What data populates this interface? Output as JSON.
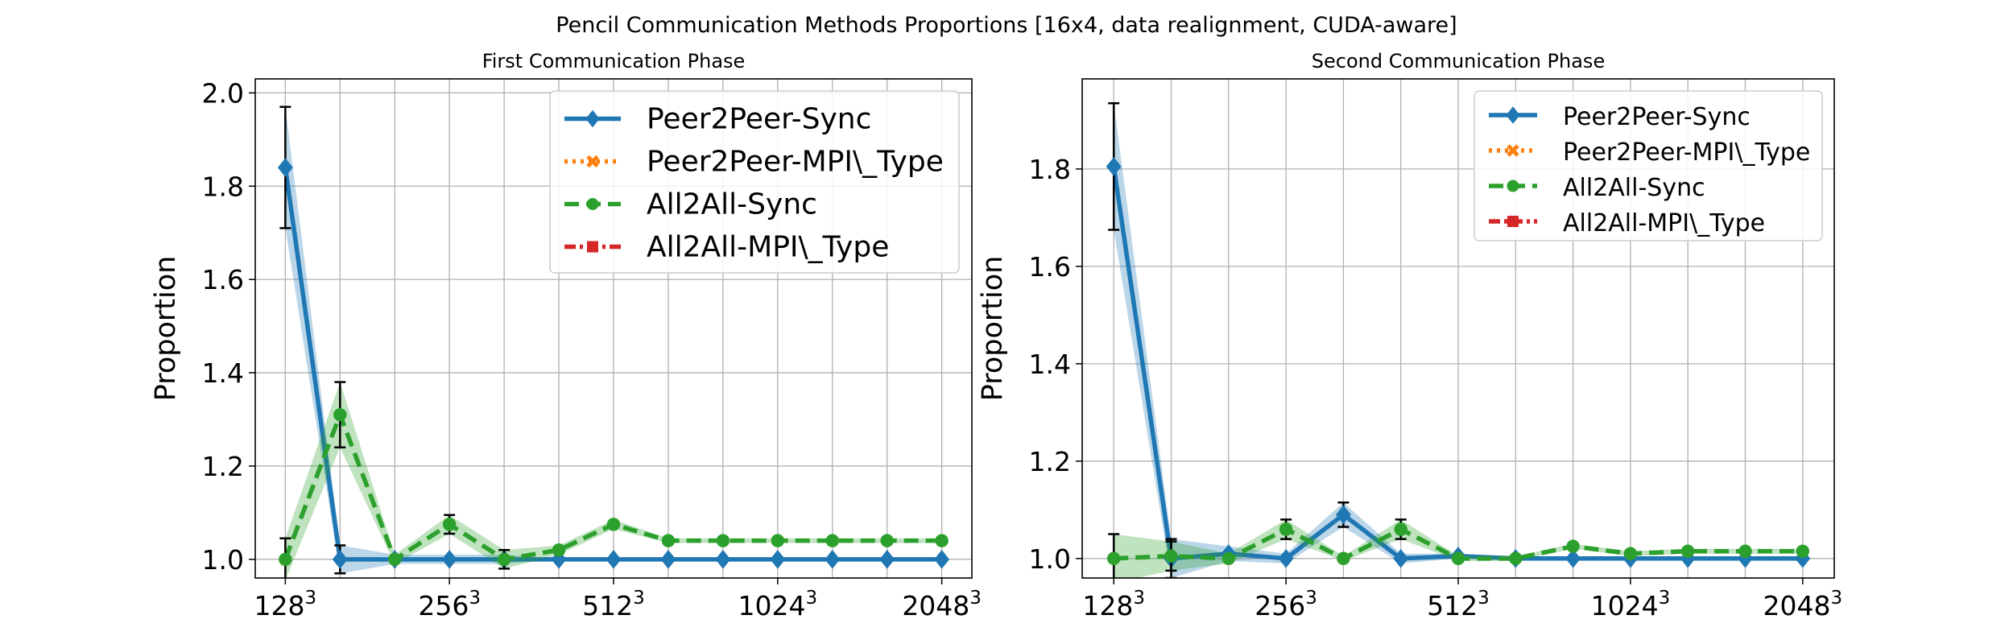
{
  "figure": {
    "title": "Pencil Communication Methods Proportions [16x4, data realignment, CUDA-aware]"
  },
  "chart_data": [
    {
      "type": "line",
      "title": "First Communication Phase",
      "ylabel": "Proportion",
      "xlabel": "",
      "ylim": [
        0.96,
        2.03
      ],
      "yticks": [
        "1.0",
        "1.2",
        "1.4",
        "1.6",
        "1.8",
        "2.0"
      ],
      "xticks": [
        {
          "pos": 0,
          "base": "128",
          "sup": "3"
        },
        {
          "pos": 3,
          "base": "256",
          "sup": "3"
        },
        {
          "pos": 6,
          "base": "512",
          "sup": "3"
        },
        {
          "pos": 9,
          "base": "1024",
          "sup": "3"
        },
        {
          "pos": 12,
          "base": "2048",
          "sup": "3"
        }
      ],
      "grid": true,
      "legend_position": "top-right",
      "series": [
        {
          "name": "Peer2Peer-Sync",
          "color": "#1f77b4",
          "marker": "diamond",
          "values": [
            1.84,
            1.0,
            1.0,
            1.0,
            1.0,
            1.0,
            1.0,
            1.0,
            1.0,
            1.0,
            1.0,
            1.0,
            1.0
          ],
          "err": [
            0.13,
            0.03,
            0.01,
            0.01,
            0.01,
            0.0,
            0.0,
            0.0,
            0.0,
            0.0,
            0.0,
            0.0,
            0.0
          ]
        },
        {
          "name": "Peer2Peer-MPI\\_Type",
          "color": "#ff7f0e",
          "marker": "x",
          "values": []
        },
        {
          "name": "All2All-Sync",
          "color": "#2ca02c",
          "marker": "circle",
          "values": [
            1.0,
            1.31,
            1.0,
            1.075,
            1.0,
            1.02,
            1.075,
            1.04,
            1.04,
            1.04,
            1.04,
            1.04,
            1.04
          ],
          "err": [
            0.045,
            0.07,
            0.01,
            0.02,
            0.02,
            0.01,
            0.01,
            0.005,
            0.005,
            0.005,
            0.005,
            0.005,
            0.005
          ]
        },
        {
          "name": "All2All-MPI\\_Type",
          "color": "#d62728",
          "marker": "square",
          "values": []
        }
      ]
    },
    {
      "type": "line",
      "title": "Second Communication Phase",
      "ylabel": "Proportion",
      "xlabel": "",
      "ylim": [
        0.96,
        1.985
      ],
      "yticks": [
        "1.0",
        "1.2",
        "1.4",
        "1.6",
        "1.8"
      ],
      "xticks": [
        {
          "pos": 0,
          "base": "128",
          "sup": "3"
        },
        {
          "pos": 3,
          "base": "256",
          "sup": "3"
        },
        {
          "pos": 6,
          "base": "512",
          "sup": "3"
        },
        {
          "pos": 9,
          "base": "1024",
          "sup": "3"
        },
        {
          "pos": 12,
          "base": "2048",
          "sup": "3"
        }
      ],
      "grid": true,
      "legend_position": "top-right",
      "series": [
        {
          "name": "Peer2Peer-Sync",
          "color": "#1f77b4",
          "marker": "diamond",
          "values": [
            1.805,
            1.0,
            1.01,
            1.0,
            1.09,
            1.0,
            1.005,
            1.0,
            1.0,
            1.0,
            1.0,
            1.0,
            1.0
          ],
          "err": [
            0.13,
            0.04,
            0.015,
            0.01,
            0.025,
            0.01,
            0.005,
            0.0,
            0.0,
            0.0,
            0.0,
            0.0,
            0.0
          ]
        },
        {
          "name": "Peer2Peer-MPI\\_Type",
          "color": "#ff7f0e",
          "marker": "x",
          "values": []
        },
        {
          "name": "All2All-Sync",
          "color": "#2ca02c",
          "marker": "circle",
          "values": [
            1.0,
            1.005,
            1.0,
            1.06,
            1.0,
            1.06,
            1.0,
            1.0,
            1.025,
            1.01,
            1.015,
            1.015,
            1.015
          ],
          "err": [
            0.05,
            0.03,
            0.01,
            0.02,
            0.005,
            0.02,
            0.005,
            0.005,
            0.005,
            0.005,
            0.005,
            0.005,
            0.005
          ]
        },
        {
          "name": "All2All-MPI\\_Type",
          "color": "#d62728",
          "marker": "square",
          "values": []
        }
      ]
    }
  ]
}
